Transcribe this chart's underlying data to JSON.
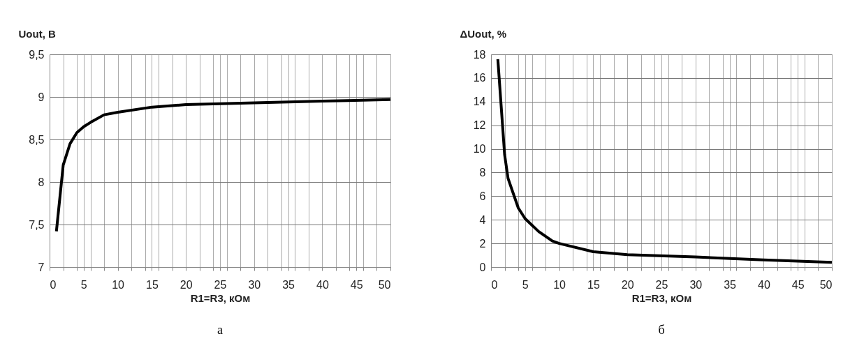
{
  "chart_data": [
    {
      "type": "line",
      "ylabel": "Uout, В",
      "xlabel": "R1=R3, кОм",
      "annotations": [
        "а"
      ],
      "x": [
        1,
        2,
        3,
        4,
        5,
        6,
        8,
        10,
        15,
        20,
        30,
        40,
        50
      ],
      "series": [
        {
          "color": "#000000",
          "values": [
            7.42,
            8.2,
            8.45,
            8.58,
            8.65,
            8.7,
            8.79,
            8.82,
            8.88,
            8.91,
            8.93,
            8.95,
            8.97
          ]
        }
      ],
      "xlim": [
        0,
        50
      ],
      "xticks": [
        0,
        {
          "value": 2,
          "label": null
        },
        {
          "value": 4,
          "label": null
        },
        5,
        {
          "value": 6,
          "label": null
        },
        {
          "value": 8,
          "label": null
        },
        10,
        {
          "value": 12,
          "label": null
        },
        {
          "value": 14,
          "label": null
        },
        15,
        {
          "value": 16,
          "label": null
        },
        {
          "value": 18,
          "label": null
        },
        20,
        {
          "value": 22,
          "label": null
        },
        {
          "value": 24,
          "label": null
        },
        25,
        {
          "value": 26,
          "label": null
        },
        {
          "value": 28,
          "label": null
        },
        30,
        {
          "value": 32,
          "label": null
        },
        {
          "value": 34,
          "label": null
        },
        35,
        {
          "value": 36,
          "label": null
        },
        {
          "value": 38,
          "label": null
        },
        40,
        {
          "value": 42,
          "label": null
        },
        {
          "value": 44,
          "label": null
        },
        45,
        {
          "value": 46,
          "label": null
        },
        {
          "value": 48,
          "label": null
        },
        50
      ],
      "ylim": [
        7,
        9.5
      ],
      "yticks": [
        7,
        {
          "value": 7.5,
          "label": "7,5"
        },
        8,
        {
          "value": 8.5,
          "label": "8,5"
        },
        9,
        {
          "value": 9.5,
          "label": "9,5"
        }
      ],
      "grid": true,
      "marker": "none",
      "line_style": "solid"
    },
    {
      "type": "line",
      "ylabel": "ΔUout, %",
      "xlabel": "R1=R3, кОм",
      "annotations": [
        "б"
      ],
      "x": [
        1,
        2,
        2.5,
        4,
        5,
        7,
        9,
        10,
        15,
        20,
        30,
        40,
        50
      ],
      "series": [
        {
          "color": "#000000",
          "values": [
            17.6,
            9.5,
            7.5,
            5,
            4.1,
            3,
            2.2,
            2,
            1.3,
            1.05,
            0.85,
            0.6,
            0.4
          ]
        }
      ],
      "xlim": [
        0,
        50
      ],
      "xticks": [
        0,
        {
          "value": 2,
          "label": null
        },
        {
          "value": 4,
          "label": null
        },
        5,
        {
          "value": 6,
          "label": null
        },
        {
          "value": 8,
          "label": null
        },
        10,
        {
          "value": 12,
          "label": null
        },
        {
          "value": 14,
          "label": null
        },
        15,
        {
          "value": 16,
          "label": null
        },
        {
          "value": 18,
          "label": null
        },
        20,
        {
          "value": 22,
          "label": null
        },
        {
          "value": 24,
          "label": null
        },
        25,
        {
          "value": 26,
          "label": null
        },
        {
          "value": 28,
          "label": null
        },
        30,
        {
          "value": 32,
          "label": null
        },
        {
          "value": 34,
          "label": null
        },
        35,
        {
          "value": 36,
          "label": null
        },
        {
          "value": 38,
          "label": null
        },
        40,
        {
          "value": 42,
          "label": null
        },
        {
          "value": 44,
          "label": null
        },
        45,
        {
          "value": 46,
          "label": null
        },
        {
          "value": 48,
          "label": null
        },
        50
      ],
      "ylim": [
        0,
        18
      ],
      "yticks": [
        0,
        2,
        4,
        6,
        8,
        10,
        12,
        14,
        16,
        18
      ],
      "grid": true,
      "marker": "none",
      "line_style": "solid"
    }
  ]
}
